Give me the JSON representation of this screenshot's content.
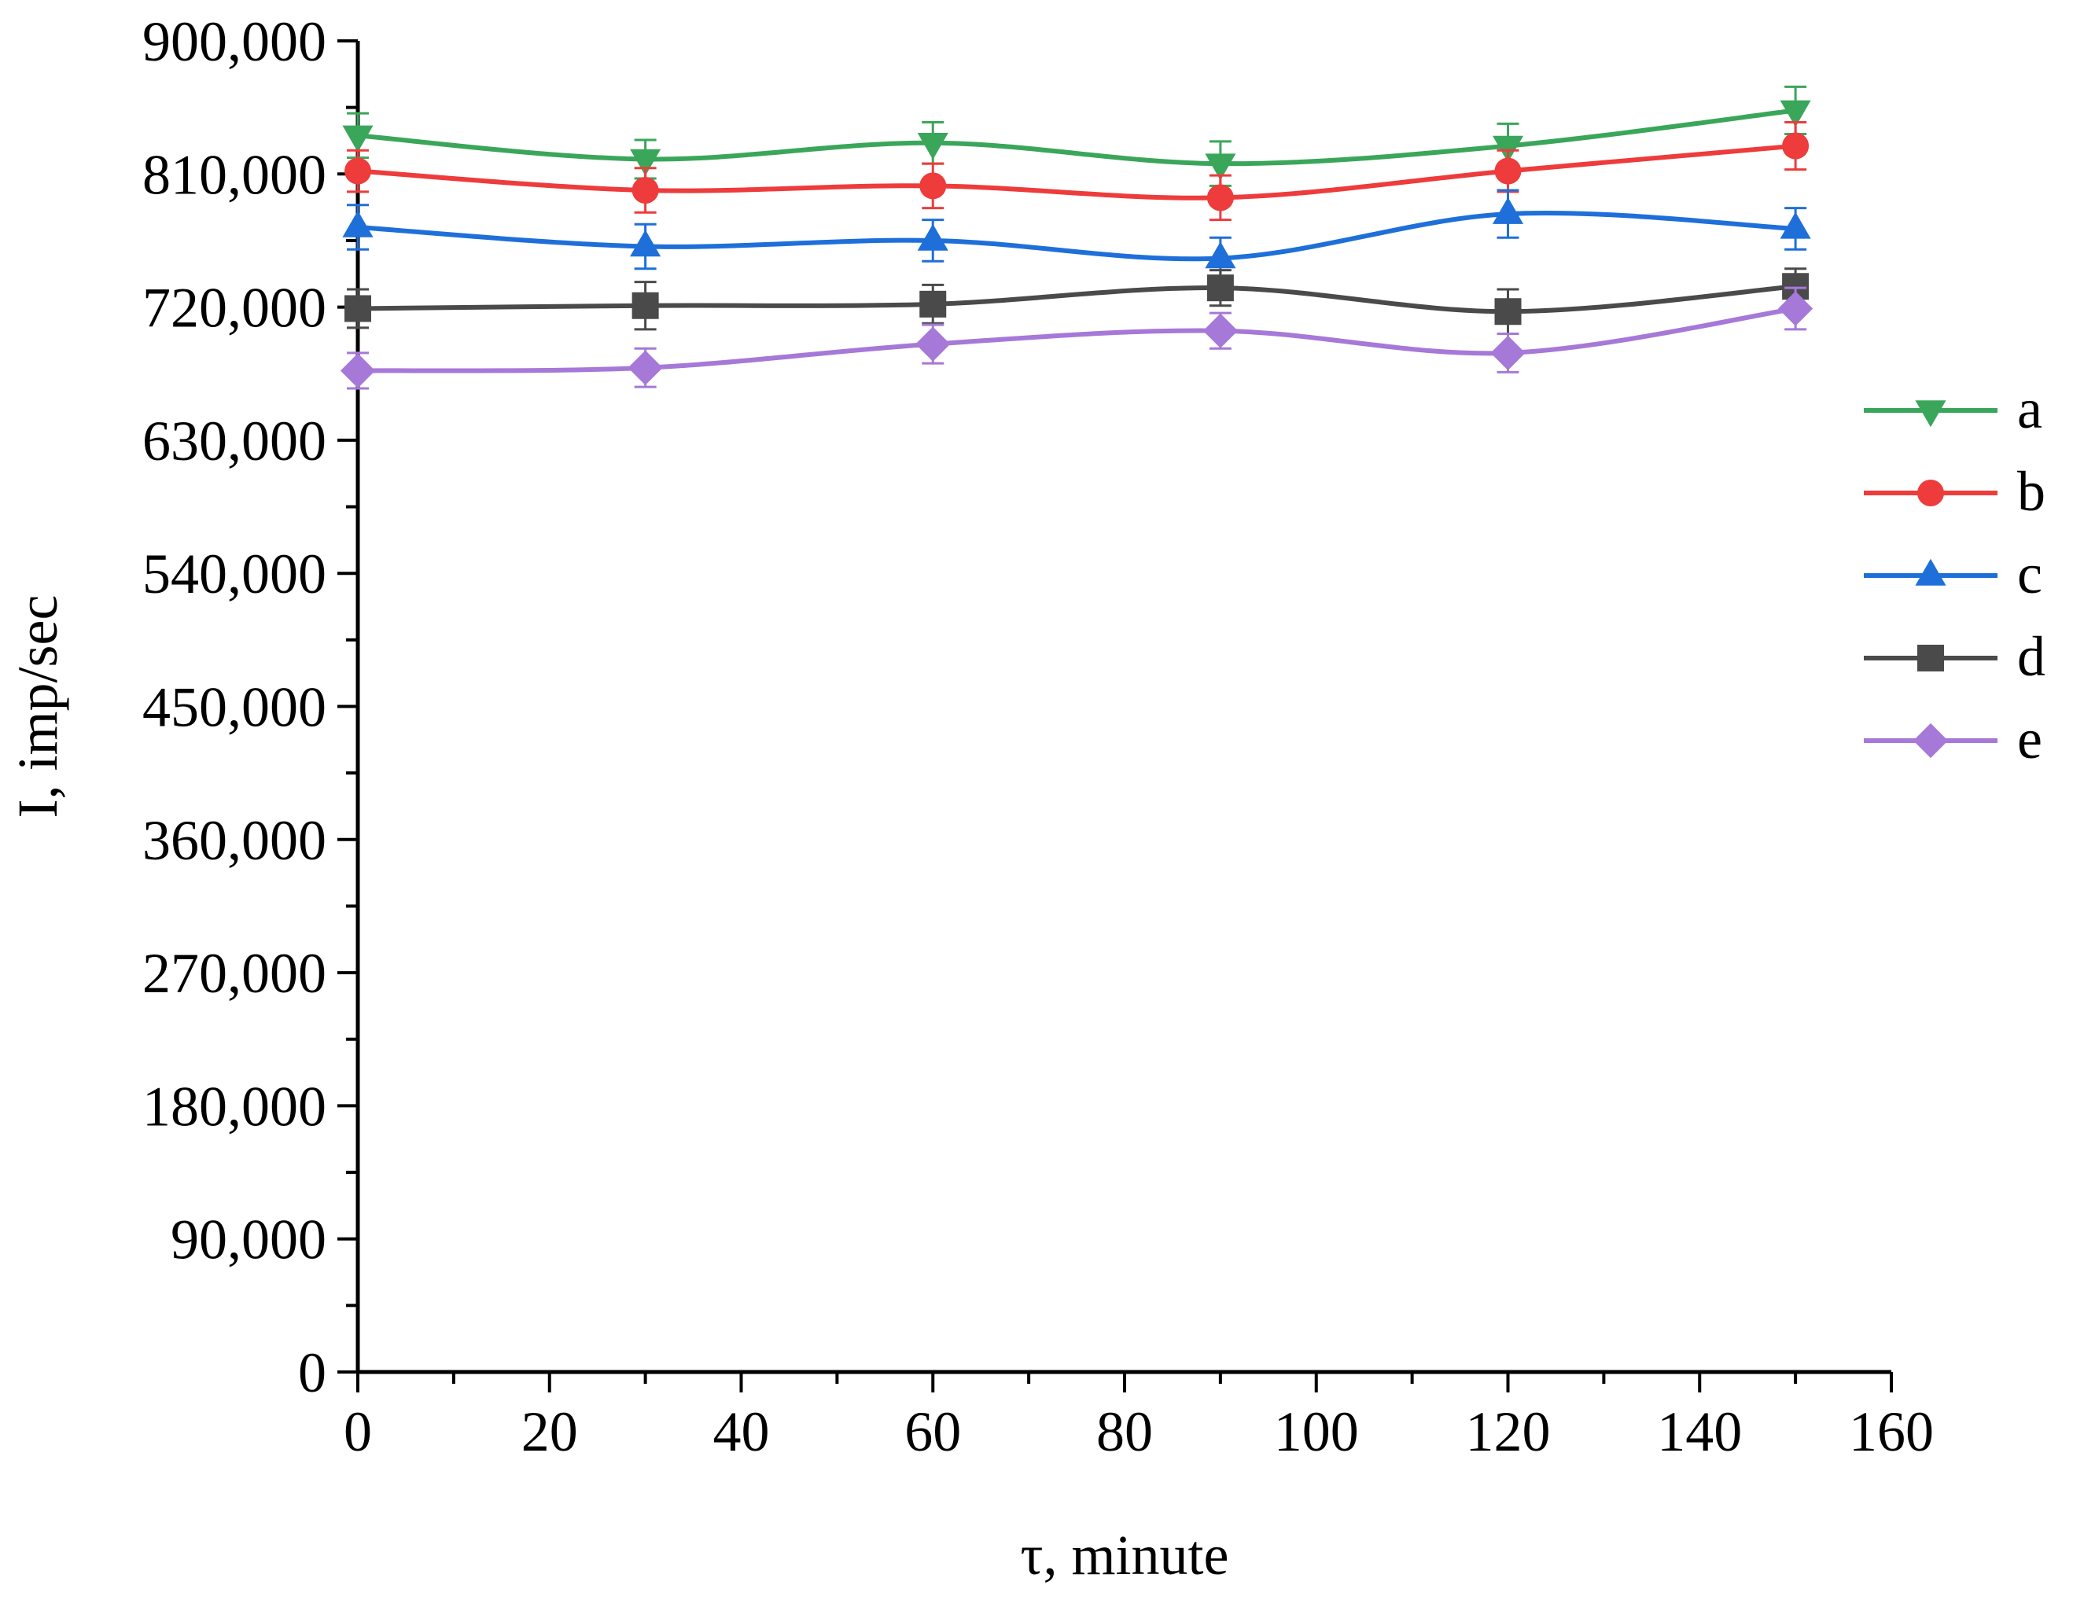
{
  "chart_data": {
    "type": "line",
    "title": "",
    "xlabel": "τ, minute",
    "ylabel": "I, imp/sec",
    "xlim": [
      0,
      160
    ],
    "ylim": [
      0,
      900000
    ],
    "x_ticks": [
      0,
      20,
      40,
      60,
      80,
      100,
      120,
      140,
      160
    ],
    "x_tick_labels": [
      "0",
      "20",
      "40",
      "60",
      "80",
      "100",
      "120",
      "140",
      "160"
    ],
    "y_ticks": [
      0,
      90000,
      180000,
      270000,
      360000,
      450000,
      540000,
      630000,
      720000,
      810000,
      900000
    ],
    "y_tick_labels": [
      "0",
      "90,000",
      "180,000",
      "270,000",
      "360,000",
      "450,000",
      "540,000",
      "630,000",
      "720,000",
      "810,000",
      "900,000"
    ],
    "grid": false,
    "legend_position": "right",
    "x": [
      0,
      30,
      60,
      90,
      120,
      150
    ],
    "series": [
      {
        "name": "a",
        "color": "#3aa65a",
        "marker": "triangle-down",
        "values": [
          836000,
          820000,
          831000,
          817000,
          829000,
          853000
        ],
        "errors": [
          15000,
          13000,
          14000,
          15000,
          15000,
          16000
        ]
      },
      {
        "name": "b",
        "color": "#ee3b3b",
        "marker": "circle",
        "values": [
          812000,
          799000,
          802000,
          794000,
          812000,
          829000
        ],
        "errors": [
          14000,
          15000,
          15000,
          15000,
          14000,
          16000
        ]
      },
      {
        "name": "c",
        "color": "#1e6fd9",
        "marker": "triangle-up",
        "values": [
          774000,
          761000,
          765000,
          753000,
          783000,
          773000
        ],
        "errors": [
          15000,
          15000,
          14000,
          14000,
          16000,
          14000
        ]
      },
      {
        "name": "d",
        "color": "#4a4a4a",
        "marker": "square",
        "values": [
          719000,
          721000,
          722000,
          733000,
          717000,
          734000
        ],
        "errors": [
          13000,
          16000,
          13000,
          12000,
          15000,
          12000
        ]
      },
      {
        "name": "e",
        "color": "#a678d8",
        "marker": "diamond",
        "values": [
          677000,
          679000,
          695000,
          704000,
          689000,
          719000
        ],
        "errors": [
          12000,
          13000,
          13000,
          12000,
          13000,
          14000
        ]
      }
    ]
  }
}
